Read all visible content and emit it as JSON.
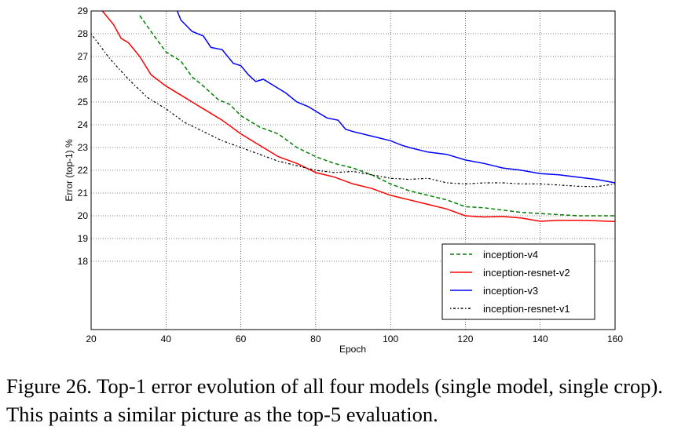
{
  "chart_data": {
    "type": "line",
    "title": "",
    "xlabel": "Epoch",
    "ylabel": "Error (top-1) %",
    "xlim": [
      20,
      160
    ],
    "ylim": [
      15,
      29
    ],
    "xticks": [
      20,
      40,
      60,
      80,
      100,
      120,
      140,
      160
    ],
    "yticks": [
      18,
      19,
      20,
      21,
      22,
      23,
      24,
      25,
      26,
      27,
      28,
      29
    ],
    "grid": true,
    "legend_position": "lower-right",
    "series": [
      {
        "name": "inception-v4",
        "color": "#008000",
        "style": "dashed",
        "x": [
          33,
          36,
          40,
          44,
          47,
          50,
          54,
          57,
          60,
          65,
          70,
          75,
          80,
          85,
          90,
          95,
          100,
          105,
          110,
          115,
          120,
          125,
          130,
          135,
          140,
          145,
          150,
          155,
          160
        ],
        "y": [
          28.8,
          28.1,
          27.2,
          26.8,
          26.1,
          25.7,
          25.1,
          24.9,
          24.4,
          23.9,
          23.6,
          23.0,
          22.6,
          22.3,
          22.1,
          21.8,
          21.4,
          21.1,
          20.9,
          20.7,
          20.4,
          20.35,
          20.25,
          20.15,
          20.1,
          20.05,
          20.0,
          20.0,
          20.0
        ]
      },
      {
        "name": "inception-resnet-v2",
        "color": "#ff0000",
        "style": "solid",
        "x": [
          23,
          26,
          28,
          30,
          33,
          36,
          40,
          45,
          50,
          55,
          60,
          65,
          70,
          75,
          80,
          85,
          90,
          95,
          100,
          105,
          110,
          115,
          120,
          125,
          130,
          135,
          140,
          145,
          150,
          155,
          160
        ],
        "y": [
          29.0,
          28.4,
          27.8,
          27.6,
          27.0,
          26.2,
          25.7,
          25.2,
          24.7,
          24.2,
          23.6,
          23.1,
          22.6,
          22.3,
          21.9,
          21.7,
          21.4,
          21.2,
          20.9,
          20.7,
          20.5,
          20.3,
          20.0,
          19.95,
          19.97,
          19.9,
          19.76,
          19.8,
          19.8,
          19.78,
          19.75
        ]
      },
      {
        "name": "inception-v3",
        "color": "#0000ff",
        "style": "solid",
        "x": [
          43,
          44,
          47,
          50,
          52,
          55,
          58,
          60,
          62,
          64,
          66,
          70,
          72,
          75,
          78,
          80,
          83,
          86,
          88,
          90,
          95,
          100,
          103,
          105,
          110,
          115,
          120,
          125,
          130,
          135,
          140,
          145,
          150,
          155,
          160
        ],
        "y": [
          29.0,
          28.6,
          28.1,
          27.9,
          27.4,
          27.3,
          26.7,
          26.6,
          26.2,
          25.9,
          26.0,
          25.6,
          25.4,
          25.0,
          24.8,
          24.6,
          24.3,
          24.2,
          23.8,
          23.7,
          23.5,
          23.3,
          23.1,
          23.0,
          22.8,
          22.7,
          22.45,
          22.3,
          22.1,
          22.0,
          21.85,
          21.8,
          21.7,
          21.6,
          21.45
        ]
      },
      {
        "name": "inception-resnet-v1",
        "color": "#000000",
        "style": "dashdot",
        "x": [
          20,
          25,
          30,
          35,
          40,
          45,
          50,
          55,
          60,
          65,
          70,
          75,
          80,
          85,
          90,
          95,
          100,
          105,
          110,
          115,
          120,
          125,
          130,
          135,
          140,
          145,
          150,
          155,
          160
        ],
        "y": [
          28.0,
          26.9,
          26.0,
          25.2,
          24.7,
          24.1,
          23.7,
          23.3,
          23.0,
          22.7,
          22.4,
          22.2,
          22.0,
          21.9,
          21.95,
          21.8,
          21.65,
          21.6,
          21.65,
          21.45,
          21.4,
          21.45,
          21.45,
          21.4,
          21.4,
          21.35,
          21.3,
          21.28,
          21.4
        ]
      }
    ]
  },
  "caption": "Figure 26. Top-1 error evolution of all four models (single model, single crop). This paints a similar picture as the top-5 evaluation."
}
